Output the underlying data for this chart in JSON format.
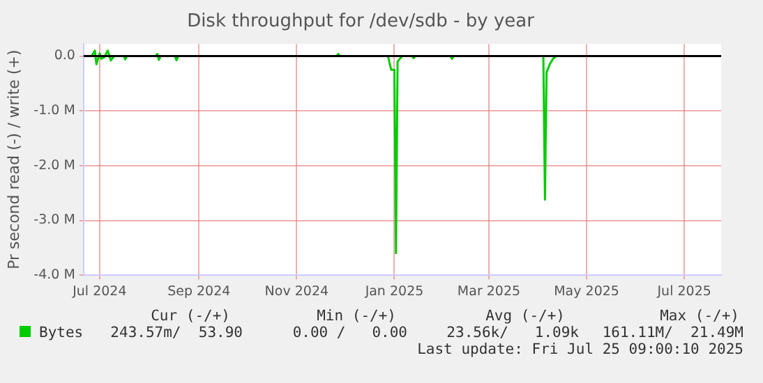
{
  "chart_data": {
    "type": "line",
    "title": "Disk throughput for /dev/sdb - by year",
    "ylabel": "Pr second read (-) / write (+)",
    "x": [
      "2024-06-21",
      "2024-06-26",
      "2024-06-28",
      "2024-06-29",
      "2024-07-01",
      "2024-07-02",
      "2024-07-04",
      "2024-07-06",
      "2024-07-08",
      "2024-07-10",
      "2024-07-16",
      "2024-07-17",
      "2024-07-18",
      "2024-08-05",
      "2024-08-06",
      "2024-08-07",
      "2024-08-08",
      "2024-08-17",
      "2024-08-18",
      "2024-08-19",
      "2024-11-26",
      "2024-11-27",
      "2024-11-28",
      "2024-12-28",
      "2024-12-30",
      "2025-01-01",
      "2025-01-02",
      "2025-01-03",
      "2025-01-05",
      "2025-01-06",
      "2025-01-12",
      "2025-01-13",
      "2025-01-14",
      "2025-02-05",
      "2025-02-06",
      "2025-02-07",
      "2025-04-04",
      "2025-04-05",
      "2025-04-06",
      "2025-04-08",
      "2025-04-10",
      "2025-04-12",
      "2025-07-24"
    ],
    "series": [
      {
        "name": "Bytes",
        "color": "#00cc00",
        "values": [
          0,
          0,
          100000,
          -150000,
          50000,
          -50000,
          -20000,
          100000,
          -80000,
          0,
          0,
          -60000,
          0,
          0,
          40000,
          -70000,
          0,
          0,
          -80000,
          0,
          0,
          40000,
          0,
          0,
          -250000,
          -250000,
          -3600000,
          -100000,
          -30000,
          0,
          0,
          -40000,
          0,
          0,
          -50000,
          0,
          0,
          -2620000,
          -300000,
          -150000,
          -50000,
          0,
          0
        ]
      }
    ],
    "xlim": [
      "2024-06-21",
      "2025-07-24"
    ],
    "xticks": [
      {
        "value": "2024-07-01",
        "label": "Jul 2024"
      },
      {
        "value": "2024-09-01",
        "label": "Sep 2024"
      },
      {
        "value": "2024-11-01",
        "label": "Nov 2024"
      },
      {
        "value": "2025-01-01",
        "label": "Jan 2025"
      },
      {
        "value": "2025-03-01",
        "label": "Mar 2025"
      },
      {
        "value": "2025-05-01",
        "label": "May 2025"
      },
      {
        "value": "2025-07-01",
        "label": "Jul 2025"
      }
    ],
    "ylim": [
      -4000000,
      220000
    ],
    "yticks": [
      {
        "value": -4000000,
        "label": "-4.0 M"
      },
      {
        "value": -3000000,
        "label": "-3.0 M"
      },
      {
        "value": -2000000,
        "label": "-2.0 M"
      },
      {
        "value": -1000000,
        "label": "-1.0 M"
      },
      {
        "value": 0,
        "label": "0.0"
      }
    ],
    "ref_lines": [
      {
        "axis": "y",
        "value": 0,
        "color": "#000000"
      }
    ],
    "grid": true,
    "legend": "bottom left",
    "marker": "none",
    "line_style": "solid",
    "annotations": [
      "Cur (-/+)",
      "Min (-/+)",
      "Avg (-/+)",
      "Max (-/+)",
      "243.57m/  53.90",
      "0.00 /   0.00",
      "23.56k/   1.09k",
      "161.11M/  21.49M",
      "Last update: Fri Jul 25 09:00:10 2025"
    ]
  }
}
